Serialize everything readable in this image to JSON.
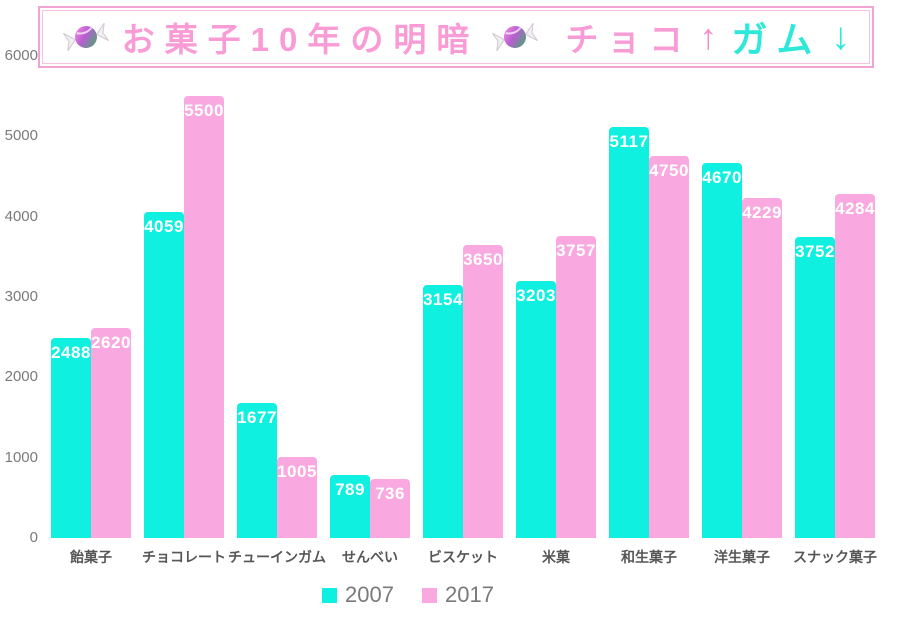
{
  "title": {
    "main": "お菓子10年の明暗",
    "choco_label": "チョコ",
    "choco_arrow": "↑",
    "gum_label": "ガム",
    "gum_arrow": "↓"
  },
  "chart_data": {
    "type": "bar",
    "categories": [
      "飴菓子",
      "チョコレート",
      "チューインガム",
      "せんべい",
      "ビスケット",
      "米菓",
      "和生菓子",
      "洋生菓子",
      "スナック菓子"
    ],
    "series": [
      {
        "name": "2007",
        "color": "#10f0e0",
        "values": [
          2488,
          4059,
          1677,
          789,
          3154,
          3203,
          5117,
          4670,
          3752
        ]
      },
      {
        "name": "2017",
        "color": "#f9a9e0",
        "values": [
          2620,
          5500,
          1005,
          736,
          3650,
          3757,
          4750,
          4229,
          4284
        ]
      }
    ],
    "title": "お菓子10年の明暗 チョコ↑ガム↓",
    "xlabel": "",
    "ylabel": "",
    "ylim": [
      0,
      6000
    ],
    "yticks": [
      0,
      1000,
      2000,
      3000,
      4000,
      5000,
      6000
    ],
    "grid": false,
    "legend_position": "bottom",
    "value_labels": "inside-top-white"
  },
  "colors": {
    "series_2007": "#10f0e0",
    "series_2017": "#f9a9e0",
    "title_pink": "#f99bd5",
    "title_cyan": "#2ee9da",
    "title_border": "#f2a2d3",
    "axis_text": "#7a7a7a",
    "category_text": "#565656",
    "legend_text": "#7a7a7a",
    "background": "#ffffff"
  }
}
